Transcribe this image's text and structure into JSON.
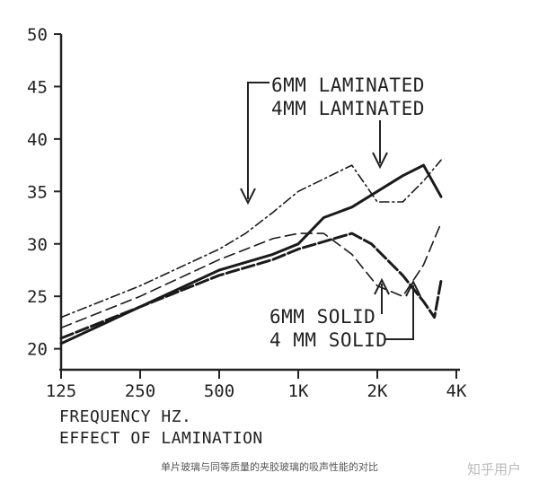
{
  "chart_data": {
    "type": "line",
    "xlabel": "FREQUENCY HZ.",
    "subtitle": "EFFECT OF LAMINATION",
    "x_tick_labels": [
      "125",
      "250",
      "500",
      "1K",
      "2K",
      "4K"
    ],
    "y_ticks": [
      20,
      25,
      30,
      35,
      40,
      45,
      50
    ],
    "ylim": [
      18,
      50
    ],
    "x_scale": "log",
    "grid": false,
    "series": [
      {
        "name": "6MM LAMINATED",
        "style": "dash-dot",
        "x": [
          125,
          250,
          500,
          630,
          800,
          1000,
          1600,
          2000,
          2500,
          3000,
          3500
        ],
        "y": [
          23,
          26,
          29.5,
          31,
          33,
          35,
          37.5,
          34,
          34,
          36,
          38
        ]
      },
      {
        "name": "4MM LAMINATED",
        "style": "solid-thick",
        "x": [
          125,
          250,
          500,
          800,
          1000,
          1250,
          1600,
          2000,
          2500,
          3000,
          3500
        ],
        "y": [
          20.5,
          24,
          27.5,
          29,
          30,
          32.5,
          33.5,
          35,
          36.5,
          37.5,
          34.5
        ]
      },
      {
        "name": "6MM SOLID",
        "style": "long-dash",
        "x": [
          125,
          250,
          500,
          800,
          1000,
          1250,
          1600,
          2000,
          2500,
          3000,
          3500
        ],
        "y": [
          22,
          25,
          28.5,
          30.5,
          31,
          31,
          29,
          26,
          25,
          28,
          32
        ]
      },
      {
        "name": "4MM SOLID",
        "style": "heavy-dash",
        "x": [
          125,
          250,
          500,
          800,
          1000,
          1600,
          1900,
          2500,
          3000,
          3300,
          3500
        ],
        "y": [
          21,
          24,
          27,
          28.5,
          29.5,
          31,
          30,
          27,
          24.5,
          23,
          26.5
        ]
      }
    ],
    "annotations": [
      "6MM LAMINATED",
      "4MM LAMINATED",
      "6MM SOLID",
      "4 MM SOLID"
    ]
  },
  "caption": "单片玻璃与同等质量的夹胶玻璃的吸声性能的对比",
  "watermark": "知乎用户"
}
